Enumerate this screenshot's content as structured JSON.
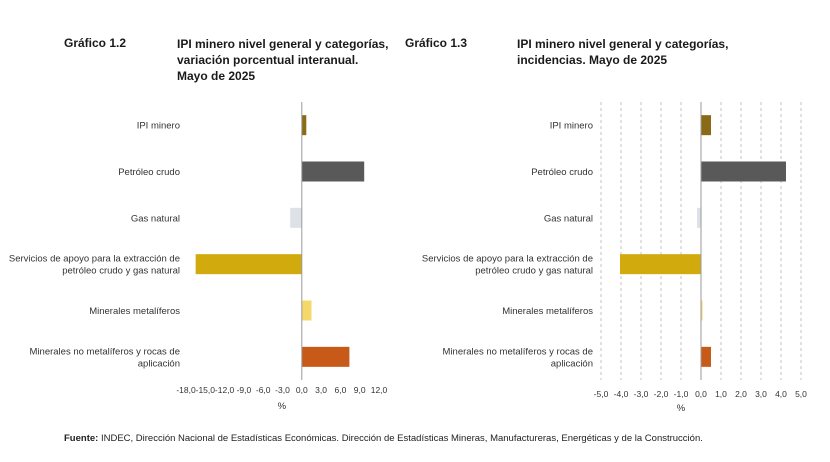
{
  "charts": [
    {
      "number": "Gráfico 1.2",
      "title_lines": [
        "IPI minero nivel general y categorías,",
        "variación porcentual interanual.",
        "Mayo de 2025"
      ]
    },
    {
      "number": "Gráfico 1.3",
      "title_lines": [
        "IPI minero nivel general y categorías,",
        "incidencias. Mayo de 2025"
      ]
    }
  ],
  "source": {
    "label": "Fuente:",
    "text": "INDEC, Dirección Nacional de Estadísticas Económicas. Dirección de Estadísticas Mineras, Manufactureras, Energéticas y de la Construcción."
  },
  "chart_data": [
    {
      "type": "bar",
      "orientation": "horizontal",
      "title": "IPI minero nivel general y categorías, variación porcentual interanual. Mayo de 2025",
      "categories": [
        [
          "IPI minero"
        ],
        [
          "Petróleo crudo"
        ],
        [
          "Gas natural"
        ],
        [
          "Servicios de apoyo para la extracción de",
          "petróleo crudo y gas natural"
        ],
        [
          "Minerales metalíferos"
        ],
        [
          "Minerales no metalíferos y rocas de",
          "aplicación"
        ]
      ],
      "values": [
        0.7,
        9.7,
        -1.8,
        -16.5,
        1.5,
        7.4
      ],
      "colors": [
        "#8a6a14",
        "#595959",
        "#dde2e8",
        "#d1ab0d",
        "#f5d86a",
        "#c85a19"
      ],
      "xlim": [
        -18,
        12
      ],
      "xticks": [
        -18,
        -15,
        -12,
        -9,
        -6,
        -3,
        0,
        3,
        6,
        9,
        12
      ],
      "xtick_labels": [
        "-18,0",
        "-15,0",
        "-12,0",
        "-9,0",
        "-6,0",
        "-3,0",
        "0,0",
        "3,0",
        "6,0",
        "9,0",
        "12,0"
      ],
      "xlabel": "%",
      "grid": false
    },
    {
      "type": "bar",
      "orientation": "horizontal",
      "title": "IPI minero nivel general y categorías, incidencias. Mayo de 2025",
      "categories": [
        [
          "IPI minero"
        ],
        [
          "Petróleo crudo"
        ],
        [
          "Gas natural"
        ],
        [
          "Servicios de apoyo para la extracción de",
          "petróleo crudo y gas natural"
        ],
        [
          "Minerales metalíferos"
        ],
        [
          "Minerales no metalíferos y rocas de",
          "aplicación"
        ]
      ],
      "values": [
        0.5,
        4.25,
        -0.2,
        -4.05,
        0.05,
        0.5
      ],
      "colors": [
        "#8a6a14",
        "#595959",
        "#dde2e8",
        "#d1ab0d",
        "#f5d86a",
        "#c85a19"
      ],
      "xlim": [
        -5,
        5
      ],
      "xticks": [
        -5,
        -4,
        -3,
        -2,
        -1,
        0,
        1,
        2,
        3,
        4,
        5
      ],
      "xtick_labels": [
        "-5,0",
        "-4,0",
        "-3,0",
        "-2,0",
        "-1,0",
        "0,0",
        "1,0",
        "2,0",
        "3,0",
        "4,0",
        "5,0"
      ],
      "xlabel": "%",
      "grid": true
    }
  ]
}
